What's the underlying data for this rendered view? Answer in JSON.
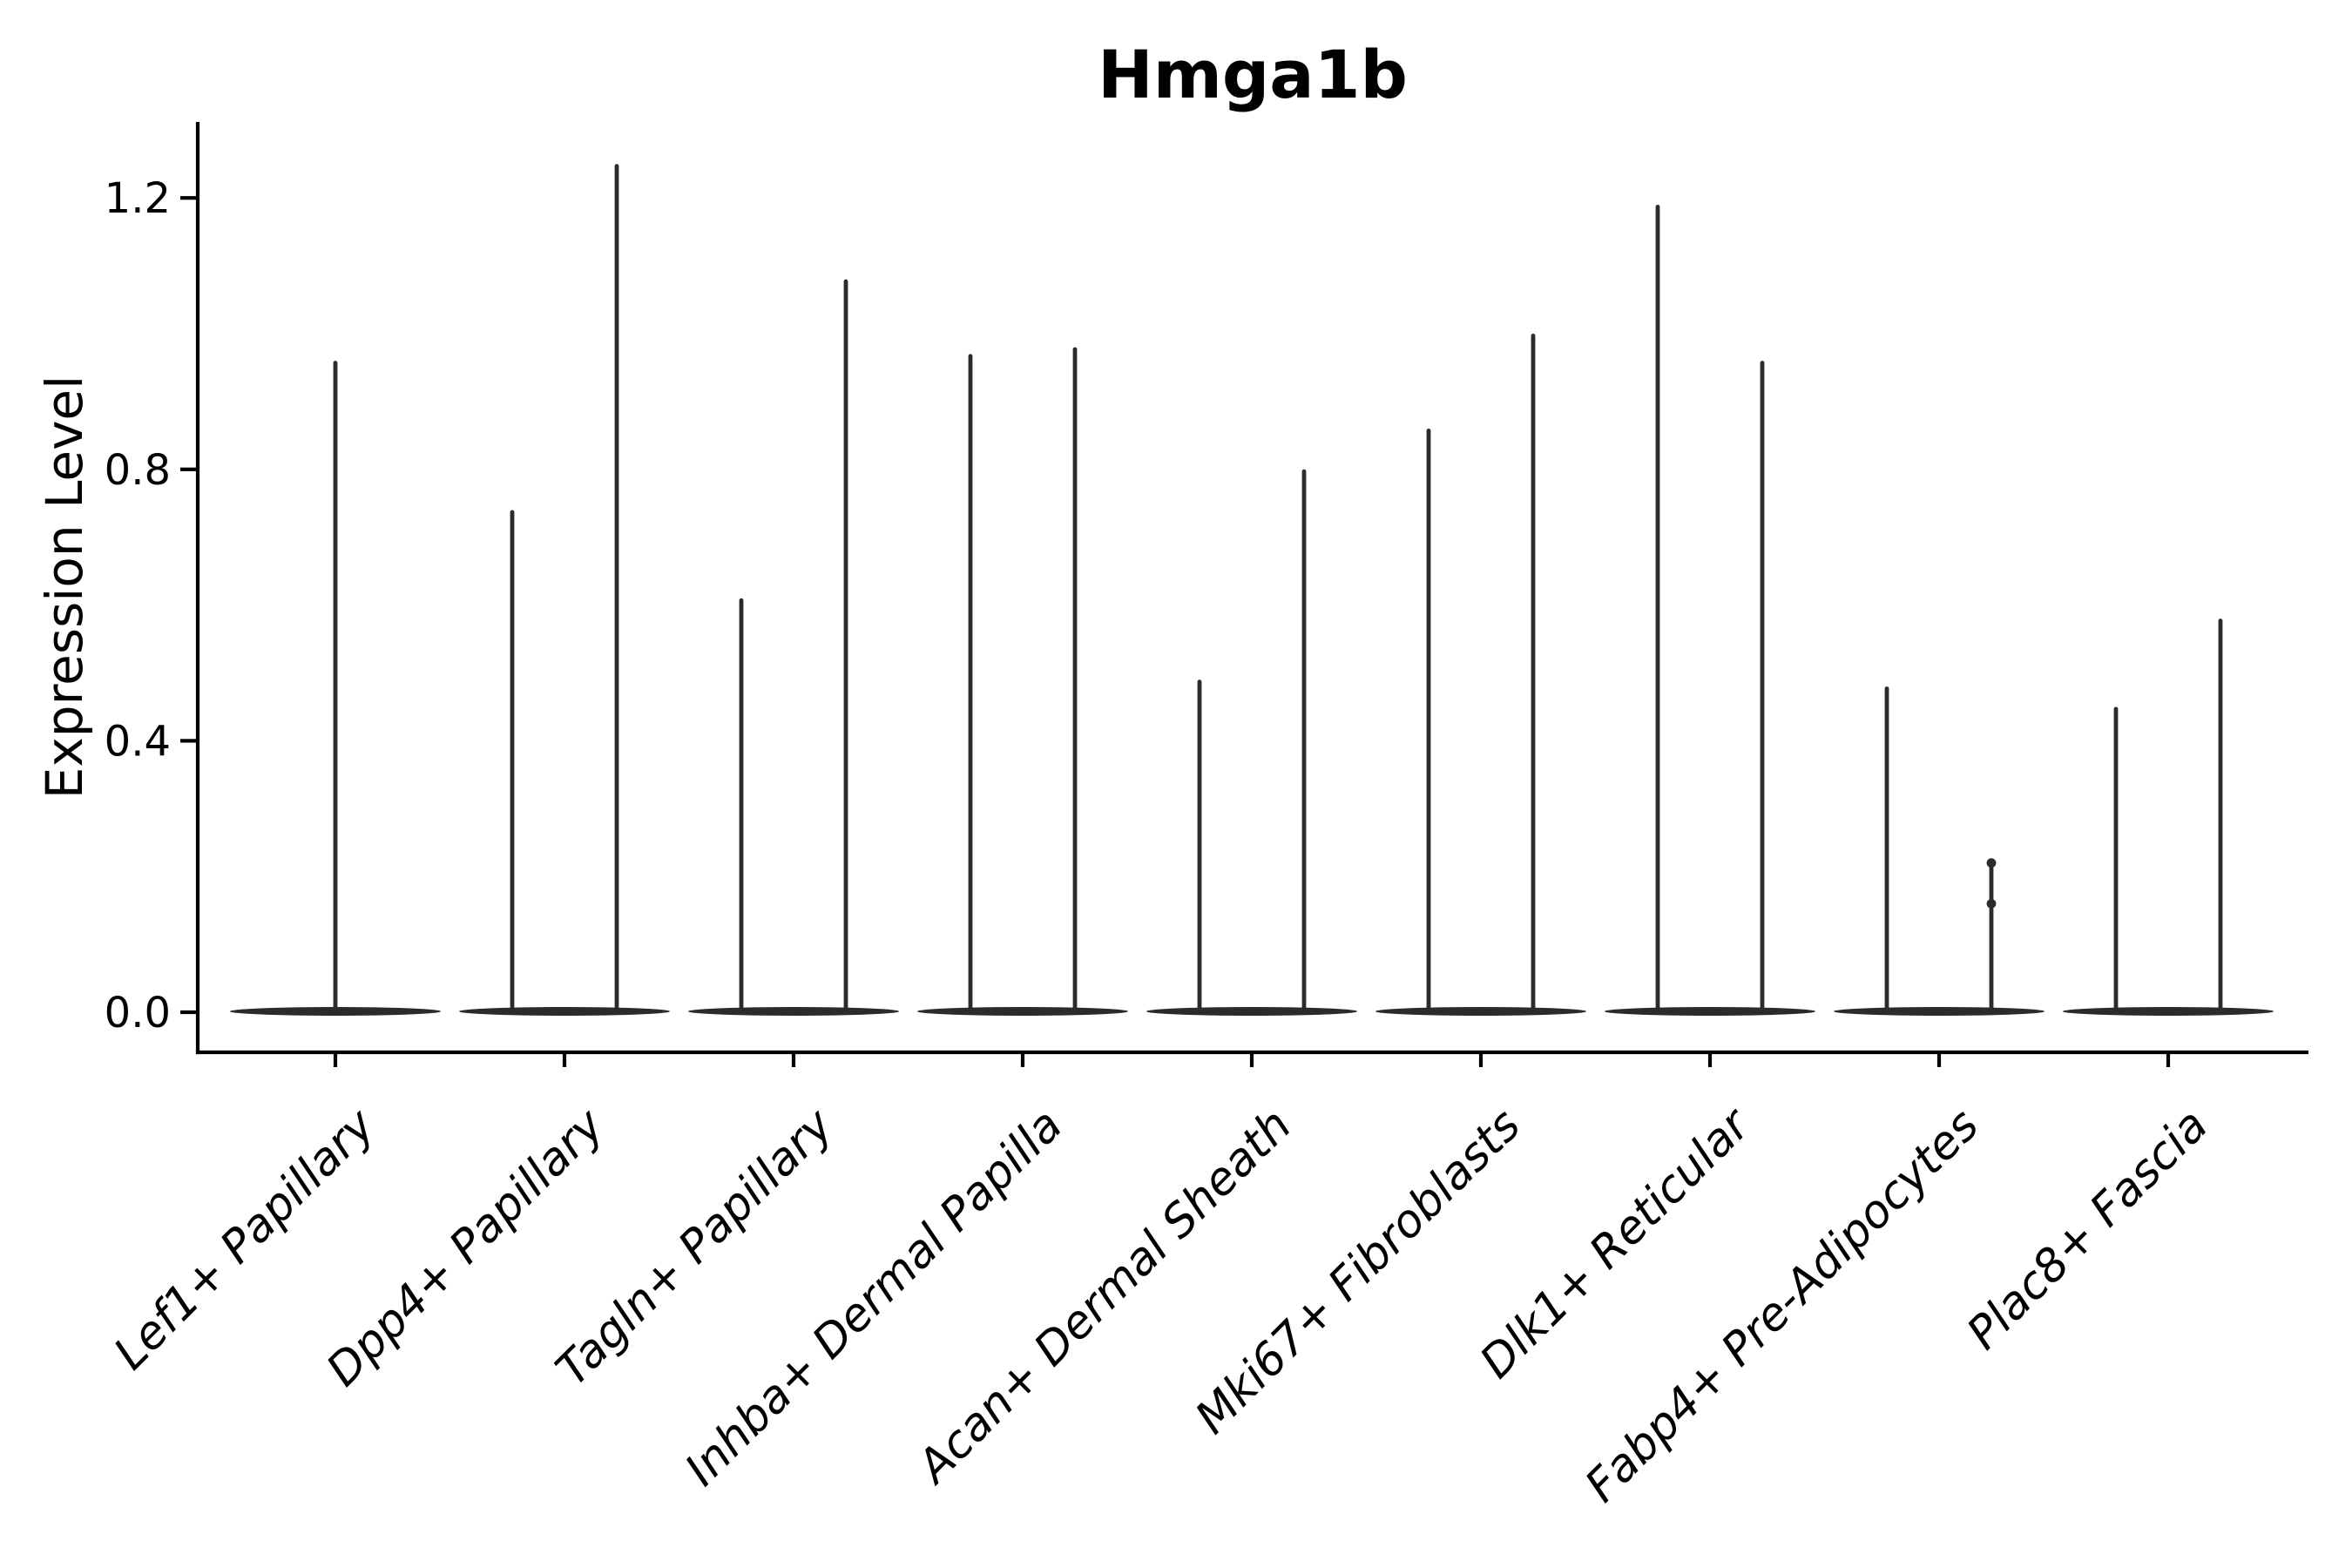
{
  "chart_data": {
    "type": "violin",
    "title": "Hmga1b",
    "xlabel": "",
    "ylabel": "Expression Level",
    "ylim": [
      -0.06,
      1.32
    ],
    "yticks": [
      0.0,
      0.4,
      0.8,
      1.2
    ],
    "grid": false,
    "legend": null,
    "violin_color": "#2b2b2b",
    "axis_color": "#000000",
    "categories": [
      "Lef1+ Papillary",
      "Dpp4+ Papillary",
      "Tagln+ Papillary",
      "Inhba+ Dermal Papilla",
      "Acan+ Dermal Sheath",
      "Mki67+ Fibroblasts",
      "Dlk1+ Reticular",
      "Fabp4+ Pre-Adipocytes",
      "Plac8+ Fascia"
    ],
    "violins": [
      {
        "category": "Lef1+ Papillary",
        "body_at": 0.0,
        "spike_max_values": [
          0.96
        ],
        "dots": []
      },
      {
        "category": "Dpp4+ Papillary",
        "body_at": 0.0,
        "spike_max_values": [
          0.74,
          1.25
        ],
        "dots": []
      },
      {
        "category": "Tagln+ Papillary",
        "body_at": 0.0,
        "spike_max_values": [
          0.61,
          1.08
        ],
        "dots": []
      },
      {
        "category": "Inhba+ Dermal Papilla",
        "body_at": 0.0,
        "spike_max_values": [
          0.97,
          0.98
        ],
        "dots": []
      },
      {
        "category": "Acan+ Dermal Sheath",
        "body_at": 0.0,
        "spike_max_values": [
          0.49,
          0.8
        ],
        "dots": []
      },
      {
        "category": "Mki67+ Fibroblasts",
        "body_at": 0.0,
        "spike_max_values": [
          0.86,
          1.0
        ],
        "dots": []
      },
      {
        "category": "Dlk1+ Reticular",
        "body_at": 0.0,
        "spike_max_values": [
          1.19,
          0.96
        ],
        "dots": []
      },
      {
        "category": "Fabp4+ Pre-Adipocytes",
        "body_at": 0.0,
        "spike_max_values": [
          0.48,
          0.22
        ],
        "dots": [
          {
            "spike": 1,
            "value": 0.22
          },
          {
            "spike": 1,
            "value": 0.16
          }
        ]
      },
      {
        "category": "Plac8+ Fascia",
        "body_at": 0.0,
        "spike_max_values": [
          0.45,
          0.58
        ],
        "dots": []
      }
    ]
  }
}
